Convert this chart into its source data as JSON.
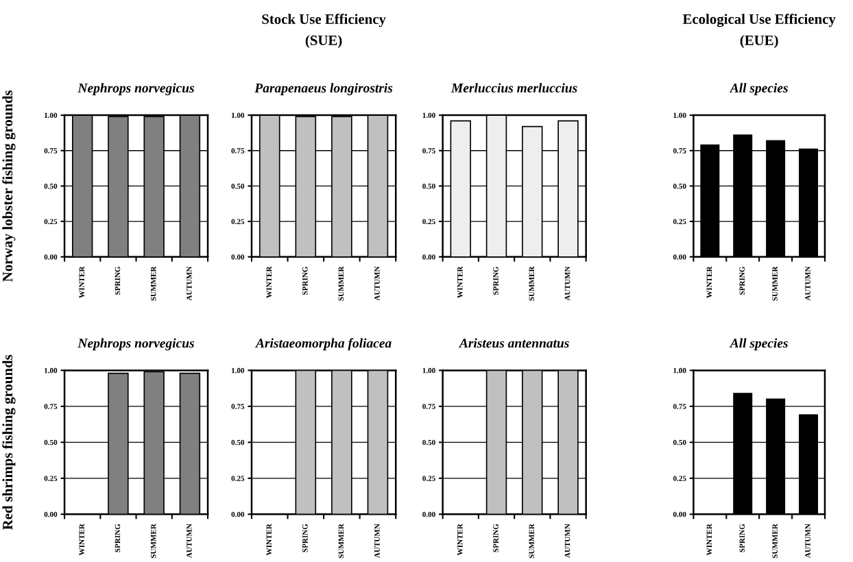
{
  "chart_data": [
    {
      "type": "bar",
      "title": "Nephrops norvegicus",
      "ylabel": "Norway lobster fishing grounds",
      "categories": [
        "WINTER",
        "SPRING",
        "SUMMER",
        "AUTUMN"
      ],
      "values": [
        1.0,
        0.99,
        0.99,
        1.0
      ],
      "color": "#808080",
      "ylim": [
        0,
        1
      ],
      "yticks": [
        {
          "value": 0,
          "label": "0.00"
        },
        {
          "value": 0.25,
          "label": "0.25"
        },
        {
          "value": 0.5,
          "label": "0.50"
        },
        {
          "value": 0.75,
          "label": "0.75"
        },
        {
          "value": 1,
          "label": "1.00"
        }
      ],
      "grid": "y"
    },
    {
      "type": "bar",
      "title": "Parapenaeus longirostris",
      "annotations": [
        "Stock Use Efficiency",
        "(SUE)"
      ],
      "categories": [
        "WINTER",
        "SPRING",
        "SUMMER",
        "AUTUMN"
      ],
      "values": [
        1.0,
        0.99,
        0.99,
        1.0
      ],
      "color": "#c0c0c0",
      "ylim": [
        0,
        1
      ],
      "yticks": [
        {
          "value": 0,
          "label": "0.00"
        },
        {
          "value": 0.25,
          "label": "0.25"
        },
        {
          "value": 0.5,
          "label": "0.50"
        },
        {
          "value": 0.75,
          "label": "0.75"
        },
        {
          "value": 1,
          "label": "1.00"
        }
      ],
      "grid": "y"
    },
    {
      "type": "bar",
      "title": "Merluccius merluccius",
      "categories": [
        "WINTER",
        "SPRING",
        "SUMMER",
        "AUTUMN"
      ],
      "values": [
        0.96,
        1.0,
        0.92,
        0.96
      ],
      "color": "#eeeeee",
      "ylim": [
        0,
        1
      ],
      "yticks": [
        {
          "value": 0,
          "label": "0.00"
        },
        {
          "value": 0.25,
          "label": "0.25"
        },
        {
          "value": 0.5,
          "label": "0.50"
        },
        {
          "value": 0.75,
          "label": "0.75"
        },
        {
          "value": 1,
          "label": "1.00"
        }
      ],
      "grid": "y"
    },
    {
      "type": "bar",
      "title": "All species",
      "annotations": [
        "Ecological Use Efficiency",
        "(EUE)"
      ],
      "categories": [
        "WINTER",
        "SPRING",
        "SUMMER",
        "AUTUMN"
      ],
      "values": [
        0.79,
        0.86,
        0.82,
        0.76
      ],
      "color": "#000000",
      "ylim": [
        0,
        1
      ],
      "yticks": [
        {
          "value": 0,
          "label": "0.00"
        },
        {
          "value": 0.25,
          "label": "0.25"
        },
        {
          "value": 0.5,
          "label": "0.50"
        },
        {
          "value": 0.75,
          "label": "0.75"
        },
        {
          "value": 1,
          "label": "1.00"
        }
      ],
      "grid": "y"
    },
    {
      "type": "bar",
      "title": "Nephrops norvegicus",
      "ylabel": "Red shrimps fishing grounds",
      "categories": [
        "WINTER",
        "SPRING",
        "SUMMER",
        "AUTUMN"
      ],
      "values": [
        null,
        0.98,
        0.99,
        0.98
      ],
      "color": "#808080",
      "ylim": [
        0,
        1
      ],
      "yticks": [
        {
          "value": 0,
          "label": "0.00"
        },
        {
          "value": 0.25,
          "label": "0.25"
        },
        {
          "value": 0.5,
          "label": "0.50"
        },
        {
          "value": 0.75,
          "label": "0.75"
        },
        {
          "value": 1,
          "label": "1.00"
        }
      ],
      "grid": "y"
    },
    {
      "type": "bar",
      "title": "Aristaeomorpha foliacea",
      "categories": [
        "WINTER",
        "SPRING",
        "SUMMER",
        "AUTUMN"
      ],
      "values": [
        null,
        1.0,
        1.0,
        1.0
      ],
      "color": "#c0c0c0",
      "ylim": [
        0,
        1
      ],
      "yticks": [
        {
          "value": 0,
          "label": "0.00"
        },
        {
          "value": 0.25,
          "label": "0.25"
        },
        {
          "value": 0.5,
          "label": "0.50"
        },
        {
          "value": 0.75,
          "label": "0.75"
        },
        {
          "value": 1,
          "label": "1.00"
        }
      ],
      "grid": "y"
    },
    {
      "type": "bar",
      "title": "Aristeus antennatus",
      "categories": [
        "WINTER",
        "SPRING",
        "SUMMER",
        "AUTUMN"
      ],
      "values": [
        null,
        1.0,
        1.0,
        1.0
      ],
      "color": "#c0c0c0",
      "ylim": [
        0,
        1
      ],
      "yticks": [
        {
          "value": 0,
          "label": "0.00"
        },
        {
          "value": 0.25,
          "label": "0.25"
        },
        {
          "value": 0.5,
          "label": "0.50"
        },
        {
          "value": 0.75,
          "label": "0.75"
        },
        {
          "value": 1,
          "label": "1.00"
        }
      ],
      "grid": "y"
    },
    {
      "type": "bar",
      "title": "All species",
      "categories": [
        "WINTER",
        "SPRING",
        "SUMMER",
        "AUTUMN"
      ],
      "values": [
        null,
        0.84,
        0.8,
        0.69
      ],
      "color": "#000000",
      "ylim": [
        0,
        1
      ],
      "yticks": [
        {
          "value": 0,
          "label": "0.00"
        },
        {
          "value": 0.25,
          "label": "0.25"
        },
        {
          "value": 0.5,
          "label": "0.50"
        },
        {
          "value": 0.75,
          "label": "0.75"
        },
        {
          "value": 1,
          "label": "1.00"
        }
      ],
      "grid": "y"
    }
  ]
}
